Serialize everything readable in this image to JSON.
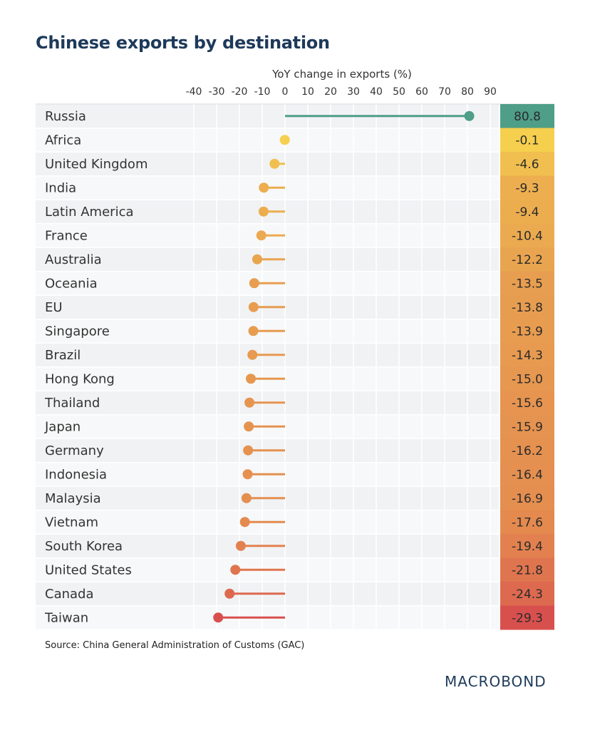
{
  "chart_data": {
    "type": "lollipop",
    "title": "Chinese exports by destination",
    "xlabel": "YoY change in exports (%)",
    "xlim": [
      -40,
      90
    ],
    "xticks": [
      -40,
      -30,
      -20,
      -10,
      0,
      10,
      20,
      30,
      40,
      50,
      60,
      70,
      80,
      90
    ],
    "categories": [
      "Russia",
      "Africa",
      "United Kingdom",
      "India",
      "Latin America",
      "France",
      "Australia",
      "Oceania",
      "EU",
      "Singapore",
      "Brazil",
      "Hong Kong",
      "Thailand",
      "Japan",
      "Germany",
      "Indonesia",
      "Malaysia",
      "Vietnam",
      "South Korea",
      "United States",
      "Canada",
      "Taiwan"
    ],
    "values": [
      80.8,
      -0.1,
      -4.6,
      -9.3,
      -9.4,
      -10.4,
      -12.2,
      -13.5,
      -13.8,
      -13.9,
      -14.3,
      -15.0,
      -15.6,
      -15.9,
      -16.2,
      -16.4,
      -16.9,
      -17.6,
      -19.4,
      -21.8,
      -24.3,
      -29.3
    ],
    "value_labels": [
      "80.8",
      "-0.1",
      "-4.6",
      "-9.3",
      "-9.4",
      "-10.4",
      "-12.2",
      "-13.5",
      "-13.8",
      "-13.9",
      "-14.3",
      "-15.0",
      "-15.6",
      "-15.9",
      "-16.2",
      "-16.4",
      "-16.9",
      "-17.6",
      "-19.4",
      "-21.8",
      "-24.3",
      "-29.3"
    ],
    "source": "Source: China General Administration of Customs (GAC)"
  },
  "colors": {
    "positive": "#4e9e88",
    "neutral": "#f6cf4e",
    "mid": "#e8a050",
    "negative": "#d8504e",
    "row_band": "#f1f2f4",
    "grid": "#ffffff",
    "text": "#333333"
  },
  "branding": {
    "logo": "MACROBOND"
  }
}
